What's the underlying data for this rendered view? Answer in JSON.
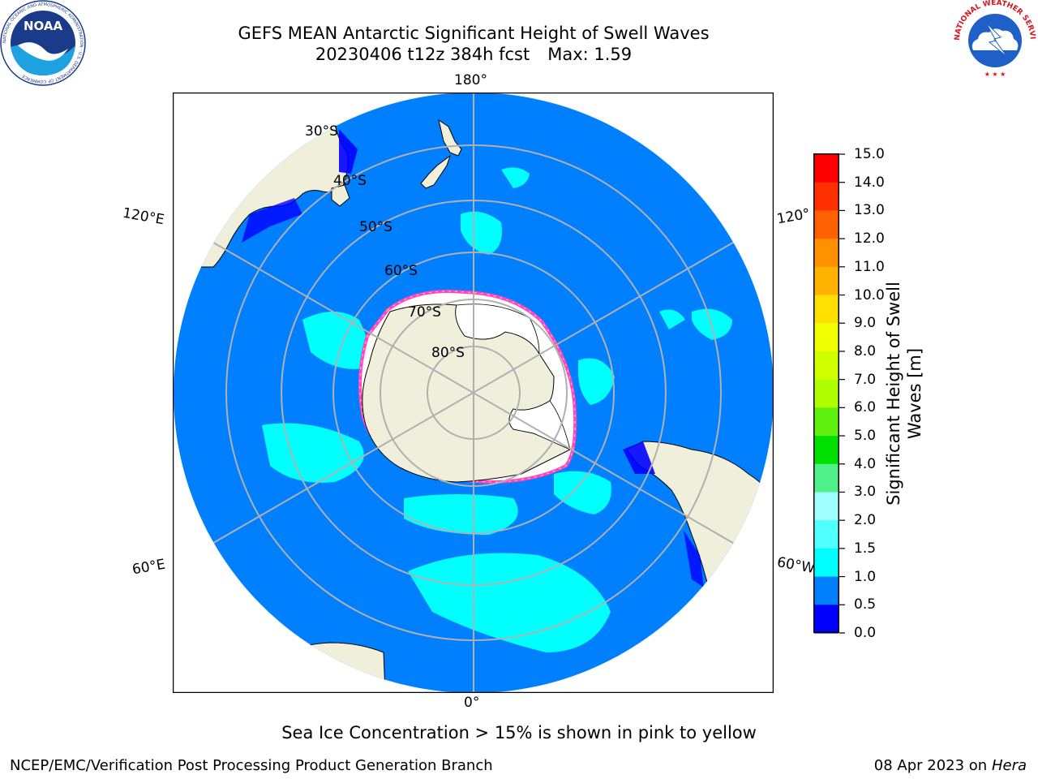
{
  "title": {
    "line1": "GEFS MEAN Antarctic Significant Height of Swell Waves",
    "run": "20230406 t12z 384h fcst",
    "max": "Max: 1.59"
  },
  "map": {
    "projection": "south-polar-stereographic",
    "longitude_labels": {
      "lon_180": "180°",
      "lon_120e": "120°E",
      "lon_120w": "120°",
      "lon_60e": "60°E",
      "lon_60w": "60°W",
      "lon_0": "0°"
    },
    "latitude_labels": {
      "lat_30": "30°S",
      "lat_40": "40°S",
      "lat_50": "50°S",
      "lat_60": "60°S",
      "lat_70": "70°S",
      "lat_80": "80°S"
    },
    "colors": {
      "ocean_swell": "#0080ff",
      "land": "#efefdc",
      "swell_high": "#00ffff",
      "swell_low": "#0000ff",
      "sea_ice": "#ffffff",
      "ice_edge": "#ff3fd8",
      "grid": "#b0b0b0"
    }
  },
  "colorbar": {
    "label": "Significant Height of Swell Waves [m]",
    "label_line1": "Significant Height of Swell",
    "label_line2": "Waves [m]",
    "ticks": [
      "15.0",
      "14.0",
      "13.0",
      "12.0",
      "11.0",
      "10.0",
      "9.0",
      "8.0",
      "7.0",
      "6.0",
      "5.0",
      "4.0",
      "3.0",
      "2.0",
      "1.5",
      "1.0",
      "0.5",
      "0.0"
    ],
    "bins": [
      {
        "range": "14.0-15.0",
        "color": "#ff0000"
      },
      {
        "range": "13.0-14.0",
        "color": "#ff3000"
      },
      {
        "range": "12.0-13.0",
        "color": "#ff6000"
      },
      {
        "range": "11.0-12.0",
        "color": "#ff9000"
      },
      {
        "range": "10.0-11.0",
        "color": "#ffb300"
      },
      {
        "range": "9.0-10.0",
        "color": "#ffe000"
      },
      {
        "range": "8.0-9.0",
        "color": "#f0ff00"
      },
      {
        "range": "7.0-8.0",
        "color": "#d0ff00"
      },
      {
        "range": "6.0-7.0",
        "color": "#b0ff00"
      },
      {
        "range": "5.0-6.0",
        "color": "#60f010"
      },
      {
        "range": "4.0-5.0",
        "color": "#00e000"
      },
      {
        "range": "3.0-4.0",
        "color": "#50f088"
      },
      {
        "range": "2.0-3.0",
        "color": "#a0ffff"
      },
      {
        "range": "1.5-2.0",
        "color": "#50ffff"
      },
      {
        "range": "1.0-1.5",
        "color": "#00ffff"
      },
      {
        "range": "0.5-1.0",
        "color": "#0080ff"
      },
      {
        "range": "0.0-0.5",
        "color": "#0000ff"
      }
    ]
  },
  "note": "Sea Ice Concentration > 15% is shown in pink to yellow",
  "footer": {
    "left": "NCEP/EMC/Verification Post Processing Product Generation Branch",
    "right_prefix": "08 Apr 2023 on ",
    "right_host": "Hera"
  },
  "logos": {
    "noaa_text": "NOAA",
    "noaa_ring_text": "NATIONAL OCEANIC AND ATMOSPHERIC ADMINISTRATION · U.S. DEPARTMENT OF COMMERCE",
    "nws_ring_text": "NATIONAL WEATHER SERVICE"
  }
}
